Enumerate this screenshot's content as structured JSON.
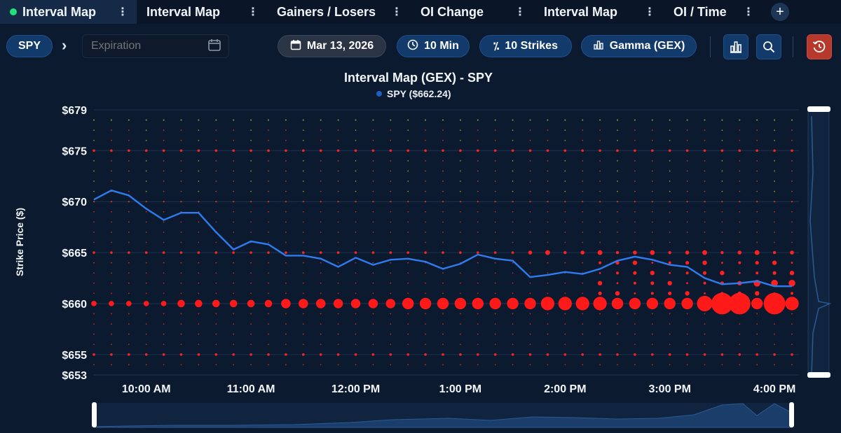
{
  "tabs": [
    {
      "label": "Interval Map",
      "active": true
    },
    {
      "label": "Interval Map",
      "active": false
    },
    {
      "label": "Gainers / Losers",
      "active": false
    },
    {
      "label": "OI Change",
      "active": false
    },
    {
      "label": "Interval Map",
      "active": false
    },
    {
      "label": "OI / Time",
      "active": false
    }
  ],
  "add_tab_label": "+",
  "toolbar": {
    "ticker": "SPY",
    "expiration_placeholder": "Expiration",
    "date": "Mar 13, 2026",
    "interval": "10 Min",
    "strikes": "10 Strikes",
    "metric": "Gamma (GEX)"
  },
  "colors": {
    "accent": "#123a6b",
    "spot_line": "#2f7cf0",
    "positive_gex": "#ff1a1a",
    "neutral_gex": "#88aa33",
    "reset_button": "#b6392c"
  },
  "chart_data": {
    "type": "scatter",
    "title": "Interval Map (GEX) - SPY",
    "legend": "SPY ($662.24)",
    "ylabel": "Strike Price ($)",
    "ylim": [
      653,
      679
    ],
    "yticks": [
      "$679",
      "$675",
      "$670",
      "$665",
      "$660",
      "$655",
      "$653"
    ],
    "ytick_values": [
      679,
      675,
      670,
      665,
      660,
      655,
      653
    ],
    "xticks": [
      "10:00 AM",
      "11:00 AM",
      "12:00 PM",
      "1:00 PM",
      "2:00 PM",
      "3:00 PM",
      "4:00 PM"
    ],
    "x_start": "9:30 AM",
    "x_end": "4:10 PM",
    "interval_minutes": 10,
    "spot_series": {
      "name": "SPY",
      "values": [
        670.2,
        671.1,
        670.6,
        669.3,
        668.2,
        668.9,
        668.9,
        667.0,
        665.3,
        666.1,
        665.8,
        664.7,
        664.7,
        664.4,
        663.6,
        664.5,
        663.8,
        664.3,
        664.4,
        664.1,
        663.4,
        663.9,
        664.8,
        664.4,
        664.2,
        662.6,
        662.8,
        663.1,
        662.9,
        663.4,
        664.2,
        664.6,
        664.3,
        663.8,
        663.6,
        662.5,
        661.9,
        662.0,
        662.2,
        661.7,
        661.7
      ]
    },
    "gex_660_sizes": [
      1,
      1,
      1,
      1,
      1,
      2,
      2,
      2,
      2,
      2,
      2,
      3,
      3,
      3,
      3,
      3,
      3,
      3,
      4,
      4,
      4,
      4,
      4,
      4,
      4,
      4,
      5,
      5,
      5,
      5,
      4,
      4,
      4,
      4,
      4,
      6,
      9,
      9,
      4,
      9,
      5
    ],
    "grid": true,
    "legend_position": "top-center"
  },
  "navigator": {}
}
